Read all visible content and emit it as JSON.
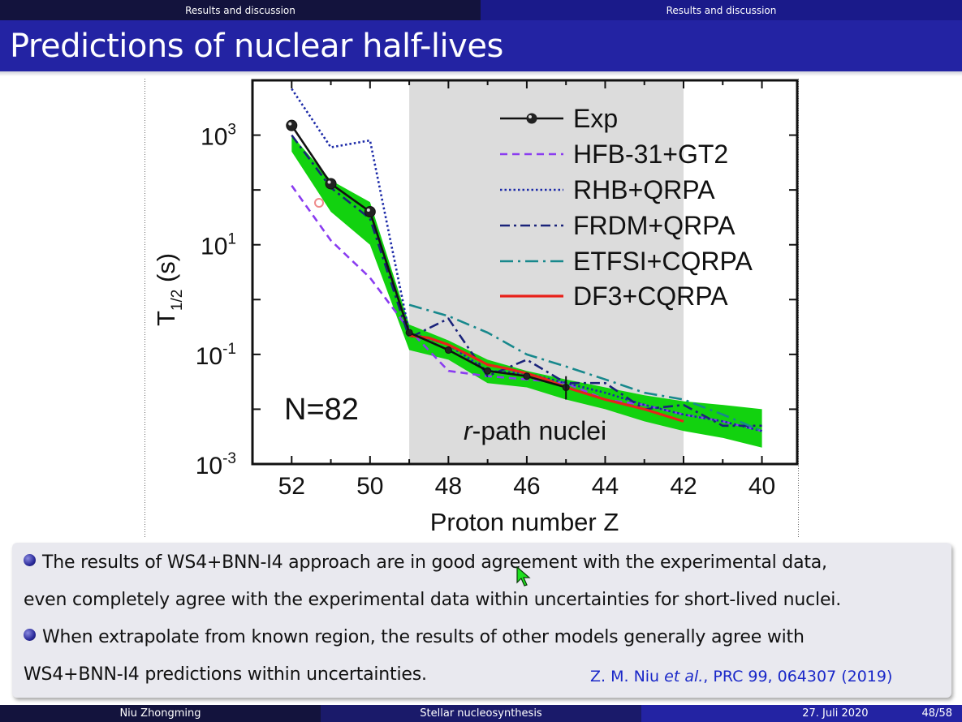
{
  "nav": {
    "left_section": "Results and discussion",
    "right_section": "Results and discussion"
  },
  "title": "Predictions of nuclear half-lives",
  "colors": {
    "title_bar": "#2323a3",
    "nav_dark": "#13133d",
    "citation": "#1a28c8"
  },
  "figure": {
    "chart_data": {
      "type": "line",
      "xlabel": "Proton number Z",
      "ylabel": "T1/2 (s)",
      "ylabel_main": "T",
      "ylabel_sub": "1/2",
      "ylabel_unit": " (s)",
      "xlim": [
        53,
        39.1
      ],
      "x_reversed": true,
      "ylim": [
        0.001,
        10000
      ],
      "yscale": "log",
      "x_ticks": [
        52,
        50,
        48,
        46,
        44,
        42,
        40
      ],
      "y_tick_labels": [
        {
          "value": 1000,
          "base": "10",
          "exp": "3"
        },
        {
          "value": 10,
          "base": "10",
          "exp": "1"
        },
        {
          "value": 0.1,
          "base": "10",
          "exp": "-1"
        },
        {
          "value": 0.001,
          "base": "10",
          "exp": "-3"
        }
      ],
      "annotation": "N=82",
      "shaded_region": {
        "x_from": 49,
        "x_to": 42,
        "label_italic": "r",
        "label_rest": "-path nuclei"
      },
      "legend_position": "top-right",
      "series": [
        {
          "name": "Exp",
          "color": "#111111",
          "style": "solid-marker",
          "points": [
            [
              52,
              1500
            ],
            [
              51,
              130
            ],
            [
              50,
              40
            ],
            [
              49,
              0.25
            ],
            [
              48,
              0.12
            ],
            [
              47,
              0.05
            ],
            [
              46,
              0.04
            ],
            [
              45,
              0.025
            ]
          ]
        },
        {
          "name": "HFB-31+GT2",
          "color": "#8a3cf0",
          "style": "dashed",
          "points": [
            [
              52,
              120
            ],
            [
              51,
              12
            ],
            [
              50,
              2.5
            ],
            [
              49,
              0.28
            ],
            [
              48,
              0.05
            ],
            [
              47,
              0.04
            ],
            [
              46,
              0.035
            ],
            [
              45,
              0.03
            ],
            [
              44,
              0.015
            ],
            [
              43,
              0.012
            ],
            [
              42,
              0.008
            ],
            [
              41,
              0.006
            ],
            [
              40,
              0.004
            ]
          ]
        },
        {
          "name": "RHB+QRPA",
          "color": "#1c2aa8",
          "style": "dotted",
          "points": [
            [
              52,
              7000
            ],
            [
              51,
              600
            ],
            [
              50,
              800
            ],
            [
              49,
              0.25
            ],
            [
              48,
              0.15
            ],
            [
              47,
              0.05
            ],
            [
              46,
              0.045
            ],
            [
              45,
              0.03
            ],
            [
              44,
              0.02
            ],
            [
              43,
              0.012
            ],
            [
              42,
              0.008
            ],
            [
              41,
              0.006
            ],
            [
              40,
              0.004
            ]
          ]
        },
        {
          "name": "FRDM+QRPA",
          "color": "#1a237a",
          "style": "dashdot",
          "points": [
            [
              52,
              1000
            ],
            [
              51,
              110
            ],
            [
              50,
              30
            ],
            [
              49,
              0.2
            ],
            [
              48,
              0.45
            ],
            [
              47,
              0.04
            ],
            [
              46,
              0.08
            ],
            [
              45,
              0.03
            ],
            [
              44,
              0.03
            ],
            [
              43,
              0.01
            ],
            [
              42,
              0.012
            ],
            [
              41,
              0.005
            ],
            [
              40,
              0.005
            ]
          ]
        },
        {
          "name": "ETFSI+CQRPA",
          "color": "#17888c",
          "style": "dashdotlong",
          "points": [
            [
              49,
              0.8
            ],
            [
              48,
              0.5
            ],
            [
              47,
              0.25
            ],
            [
              46,
              0.1
            ],
            [
              45,
              0.06
            ],
            [
              44,
              0.035
            ],
            [
              43,
              0.02
            ],
            [
              42,
              0.015
            ],
            [
              41,
              0.008
            ],
            [
              40,
              0.004
            ]
          ]
        },
        {
          "name": "DF3+CQRPA",
          "color": "#e8211a",
          "style": "solid",
          "points": [
            [
              49,
              0.22
            ],
            [
              48.5,
              0.2
            ],
            [
              48,
              0.15
            ],
            [
              47.5,
              0.1
            ],
            [
              47,
              0.065
            ],
            [
              46.5,
              0.055
            ],
            [
              46,
              0.045
            ],
            [
              45.5,
              0.035
            ],
            [
              45,
              0.025
            ],
            [
              44,
              0.015
            ],
            [
              43,
              0.01
            ],
            [
              42,
              0.006
            ]
          ]
        }
      ],
      "band": {
        "name": "WS4+BNN-I4",
        "color": "#12d20f",
        "upper": [
          [
            52,
            1000
          ],
          [
            51,
            150
          ],
          [
            50,
            60
          ],
          [
            49,
            0.35
          ],
          [
            48,
            0.18
          ],
          [
            47,
            0.08
          ],
          [
            46,
            0.05
          ],
          [
            45,
            0.035
          ],
          [
            44,
            0.025
          ],
          [
            43,
            0.018
          ],
          [
            42,
            0.014
          ],
          [
            41,
            0.012
          ],
          [
            40,
            0.01
          ]
        ],
        "lower": [
          [
            52,
            500
          ],
          [
            51,
            40
          ],
          [
            50,
            10
          ],
          [
            49,
            0.12
          ],
          [
            48,
            0.08
          ],
          [
            47,
            0.03
          ],
          [
            46,
            0.025
          ],
          [
            45,
            0.015
          ],
          [
            44,
            0.01
          ],
          [
            43,
            0.006
          ],
          [
            42,
            0.004
          ],
          [
            41,
            0.003
          ],
          [
            40,
            0.002
          ]
        ]
      }
    }
  },
  "body": {
    "line1": "The results of WS4+BNN-I4 approach are in good agreement with the experimental data,",
    "line2": "even completely agree with the experimental data within uncertainties for short-lived nuclei.",
    "line3": "When extrapolate from known region, the results of other models generally agree with",
    "line4": "WS4+BNN-I4 predictions within uncertainties.",
    "citation_authors": "Z. M. Niu ",
    "citation_etal": "et al.",
    "citation_ref": ", PRC 99, 064307 (2019)"
  },
  "footer": {
    "author": "Niu Zhongming",
    "event": "Stellar nucleosynthesis",
    "date": "27. Juli 2020",
    "page": "48/58"
  }
}
